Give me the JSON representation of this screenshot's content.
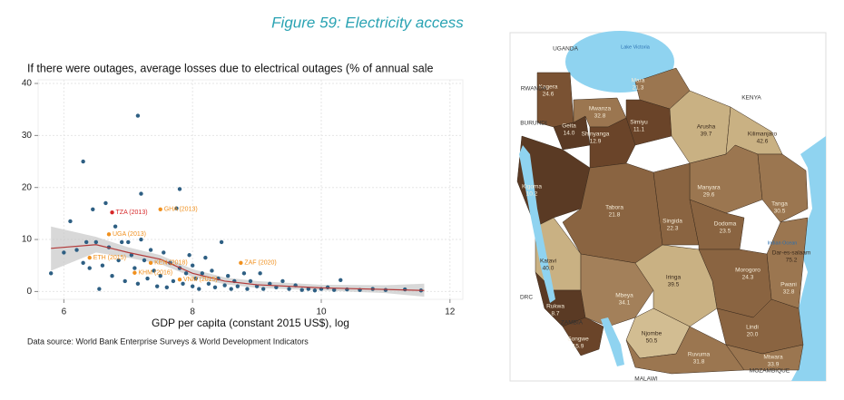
{
  "figure_title": "Figure 59: Electricity access",
  "chart_data": {
    "type": "scatter",
    "title": "If there were outages, average losses due to electrical outages (% of annual sale",
    "x_label": "GDP per capita (constant 2015 US$), log",
    "source": "Data source: World Bank Enterprise Surveys & World Development Indicators",
    "xlim": [
      5.6,
      12.2
    ],
    "ylim": [
      -1.5,
      40.7
    ],
    "xticks": [
      6,
      8,
      10,
      12
    ],
    "yticks": [
      0,
      10,
      20,
      30,
      40
    ],
    "grid": true,
    "point_color": "#2e5f83",
    "x": [
      5.8,
      6.0,
      6.1,
      6.2,
      6.3,
      6.3,
      6.35,
      6.4,
      6.45,
      6.5,
      6.55,
      6.6,
      6.65,
      6.7,
      6.75,
      6.8,
      6.85,
      6.9,
      6.95,
      7.0,
      7.05,
      7.1,
      7.15,
      7.15,
      7.2,
      7.2,
      7.25,
      7.3,
      7.35,
      7.4,
      7.45,
      7.5,
      7.55,
      7.6,
      7.65,
      7.7,
      7.75,
      7.8,
      7.8,
      7.85,
      7.9,
      7.95,
      8.0,
      8.0,
      8.05,
      8.1,
      8.15,
      8.2,
      8.25,
      8.3,
      8.35,
      8.4,
      8.45,
      8.5,
      8.55,
      8.6,
      8.65,
      8.7,
      8.8,
      8.85,
      8.9,
      9.0,
      9.05,
      9.1,
      9.2,
      9.3,
      9.4,
      9.5,
      9.6,
      9.7,
      9.8,
      9.9,
      10.0,
      10.1,
      10.2,
      10.3,
      10.4,
      10.6,
      10.8,
      11.0,
      11.3,
      11.55
    ],
    "y": [
      3.5,
      7.5,
      13.5,
      8,
      25,
      5.5,
      9.5,
      4.5,
      15.8,
      9.5,
      0.5,
      5,
      17,
      8.5,
      3,
      12.5,
      6,
      9.5,
      2,
      9.5,
      7,
      4.5,
      33.8,
      1.5,
      18.8,
      10,
      6,
      2.5,
      8,
      4,
      1,
      3,
      7.5,
      0.8,
      5.5,
      2,
      16,
      19.7,
      4.5,
      1.5,
      3.5,
      7,
      1,
      5,
      2.5,
      0.5,
      3.5,
      6.5,
      1.5,
      4,
      0.8,
      2.5,
      9.5,
      1.2,
      3,
      0.5,
      2,
      1,
      3.5,
      0.5,
      2,
      1,
      3.5,
      0.5,
      1.5,
      0.8,
      2,
      0.5,
      1.2,
      0.3,
      0.5,
      0.2,
      0.5,
      0.8,
      0.3,
      2.2,
      0.4,
      0.3,
      0.5,
      0.3,
      0.4,
      0.2
    ],
    "fit": {
      "color": "#b23a3a",
      "band_color": "#c8c8c8",
      "x": [
        5.8,
        6.5,
        7,
        7.5,
        8,
        8.5,
        9,
        10,
        11,
        11.6
      ],
      "y": [
        8.3,
        9,
        7.5,
        6.2,
        3.5,
        2,
        1.3,
        0.7,
        0.4,
        0.2
      ],
      "lower": [
        4,
        7.5,
        6.5,
        5.3,
        2.8,
        1.4,
        0.7,
        0.2,
        -0.3,
        -1
      ],
      "upper": [
        12.5,
        10.5,
        8.5,
        7,
        4.3,
        2.7,
        2,
        1.3,
        1.2,
        1.5
      ]
    },
    "labeled_points": [
      {
        "label": "TZA (2013)",
        "x": 6.75,
        "y": 15.2,
        "color": "#d62728"
      },
      {
        "label": "GHA (2013)",
        "x": 7.5,
        "y": 15.8,
        "color": "#f0901e"
      },
      {
        "label": "UGA (2013)",
        "x": 6.7,
        "y": 11,
        "color": "#f0901e"
      },
      {
        "label": "ETH (2015)",
        "x": 6.4,
        "y": 6.5,
        "color": "#f0901e"
      },
      {
        "label": "KEN (2018)",
        "x": 7.35,
        "y": 5.5,
        "color": "#f0901e"
      },
      {
        "label": "KHM (2016)",
        "x": 7.1,
        "y": 3.6,
        "color": "#f0901e"
      },
      {
        "label": "VNM (2015)",
        "x": 7.8,
        "y": 2.3,
        "color": "#f0901e"
      },
      {
        "label": "ZAF (2020)",
        "x": 8.75,
        "y": 5.5,
        "color": "#f0901e"
      }
    ]
  },
  "map": {
    "regions": [
      {
        "name": "Kagera",
        "value": "24.6",
        "color": "#7a5233"
      },
      {
        "name": "Geita",
        "value": "14.0",
        "color": "#5a3a24"
      },
      {
        "name": "Mwanza",
        "value": "32.8",
        "color": "#9b7650"
      },
      {
        "name": "Mara",
        "value": "21.3",
        "color": "#9b7650"
      },
      {
        "name": "Simiyu",
        "value": "11.1",
        "color": "#6a4429"
      },
      {
        "name": "Shinyanga",
        "value": "12.9",
        "color": "#6a4429"
      },
      {
        "name": "Arusha",
        "value": "39.7",
        "color": "#c9b183"
      },
      {
        "name": "Kilimanjaro",
        "value": "42.6",
        "color": "#c9b183"
      },
      {
        "name": "Kigoma",
        "value": "10.2",
        "color": "#5a3a24"
      },
      {
        "name": "Tabora",
        "value": "21.8",
        "color": "#8a6441"
      },
      {
        "name": "Manyara",
        "value": "29.6",
        "color": "#9b7650"
      },
      {
        "name": "Tanga",
        "value": "30.5",
        "color": "#9b7650"
      },
      {
        "name": "Singida",
        "value": "22.3",
        "color": "#8a6441"
      },
      {
        "name": "Dodoma",
        "value": "23.5",
        "color": "#8a6441"
      },
      {
        "name": "Dar-es-salaam",
        "value": "75.2",
        "color": "#e3d6b6"
      },
      {
        "name": "Pwani",
        "value": "32.8",
        "color": "#9b7650"
      },
      {
        "name": "Morogoro",
        "value": "24.3",
        "color": "#8a6441"
      },
      {
        "name": "Katavi",
        "value": "40.0",
        "color": "#c9b183"
      },
      {
        "name": "Rukwa",
        "value": "8.7",
        "color": "#5a3a24"
      },
      {
        "name": "Songwe",
        "value": "15.9",
        "color": "#6a4429"
      },
      {
        "name": "Mbeya",
        "value": "34.1",
        "color": "#a3805a"
      },
      {
        "name": "Iringa",
        "value": "39.5",
        "color": "#c9b183"
      },
      {
        "name": "Njombe",
        "value": "50.5",
        "color": "#d2bd92"
      },
      {
        "name": "Lindi",
        "value": "20.0",
        "color": "#8a6441"
      },
      {
        "name": "Ruvuma",
        "value": "31.8",
        "color": "#9b7650"
      },
      {
        "name": "Mtwara",
        "value": "33.9",
        "color": "#9b7650"
      }
    ],
    "places": [
      "UGANDA",
      "KENYA",
      "RWANDA",
      "BURUNDI",
      "DRC",
      "ZAMBIA",
      "MALAWI",
      "MOZAMBIQUE",
      "Lake Victoria",
      "Indian Ocean"
    ]
  }
}
